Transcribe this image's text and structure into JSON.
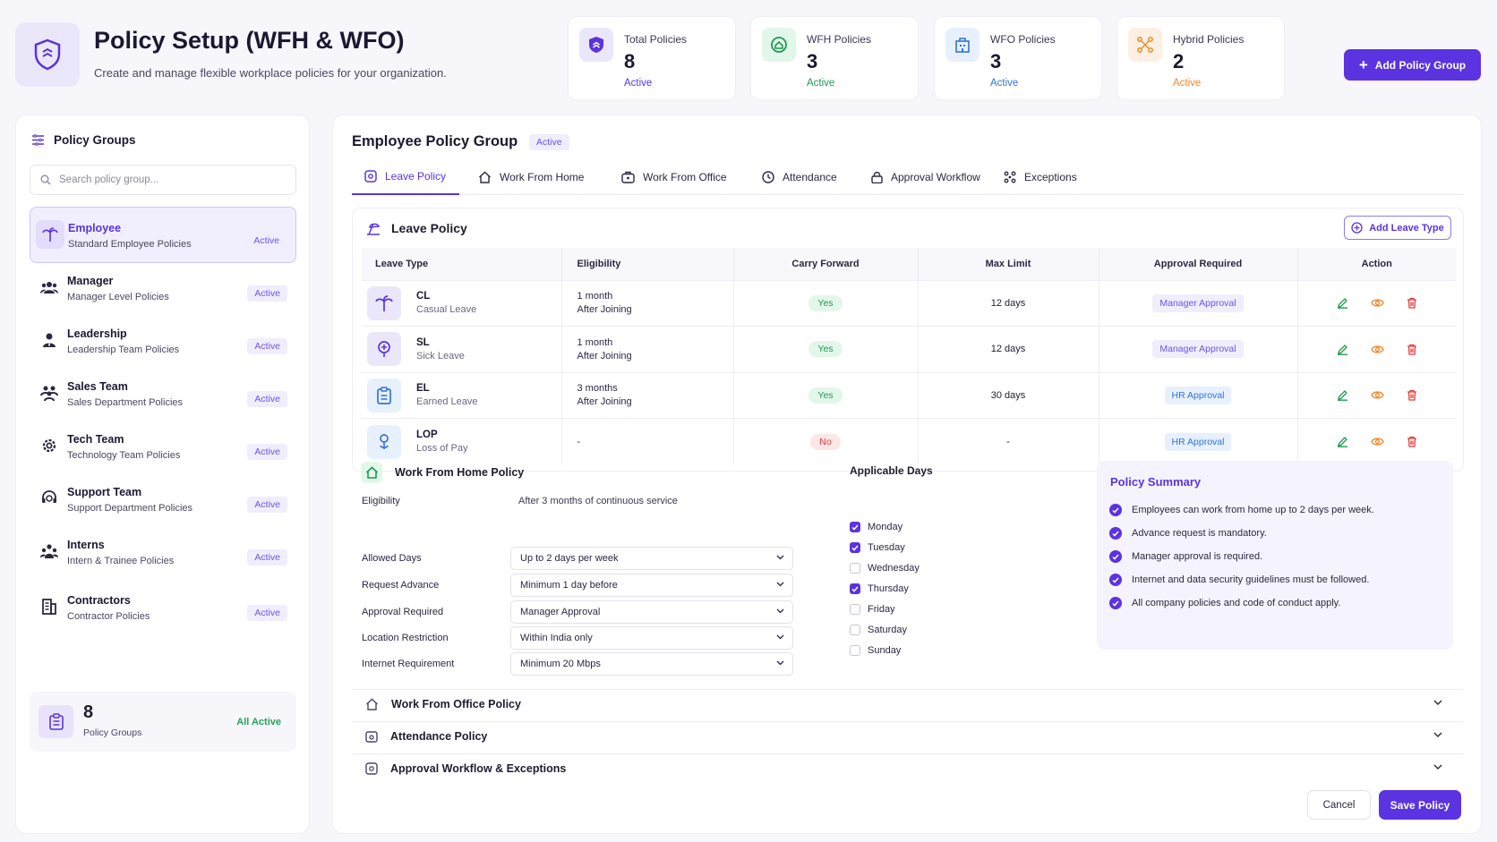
{
  "header": {
    "title": "Policy Setup (WFH & WFO)",
    "subtitle": "Create and manage flexible workplace policies for your organization.",
    "add_button": "Add Policy Group"
  },
  "stats": [
    {
      "label": "Total Policies",
      "value": "8",
      "status": "Active",
      "color": "#5b33e0",
      "icon": "shield-icon"
    },
    {
      "label": "WFH Policies",
      "value": "3",
      "status": "Active",
      "color": "#1e9a50",
      "icon": "home-icon"
    },
    {
      "label": "WFO Policies",
      "value": "3",
      "status": "Active",
      "color": "#3373d9",
      "icon": "building-icon"
    },
    {
      "label": "Hybrid Policies",
      "value": "2",
      "status": "Active",
      "color": "#ef8a2c",
      "icon": "hybrid-icon"
    }
  ],
  "sidebar": {
    "title": "Policy Groups",
    "search_placeholder": "Search policy group...",
    "items": [
      {
        "name": "Employee",
        "desc": "Standard Employee Policies",
        "status": "Active"
      },
      {
        "name": "Manager",
        "desc": "Manager Level Policies",
        "status": "Active"
      },
      {
        "name": "Leadership",
        "desc": "Leadership Team Policies",
        "status": "Active"
      },
      {
        "name": "Sales Team",
        "desc": "Sales Department Policies",
        "status": "Active"
      },
      {
        "name": "Tech Team",
        "desc": "Technology Team Policies",
        "status": "Active"
      },
      {
        "name": "Support Team",
        "desc": "Support Department Policies",
        "status": "Active"
      },
      {
        "name": "Interns",
        "desc": "Intern & Trainee Policies",
        "status": "Active"
      },
      {
        "name": "Contractors",
        "desc": "Contractor Policies",
        "status": "Active"
      }
    ],
    "summary": {
      "count": "8",
      "label": "Policy Groups",
      "status": "All Active"
    }
  },
  "main": {
    "title": "Employee Policy Group",
    "badge": "Active",
    "tabs": [
      {
        "label": "Leave Policy"
      },
      {
        "label": "Work From Home"
      },
      {
        "label": "Work From Office"
      },
      {
        "label": "Attendance"
      },
      {
        "label": "Approval Workflow"
      },
      {
        "label": "Exceptions"
      }
    ]
  },
  "leave": {
    "title": "Leave Policy",
    "add_button": "Add Leave Type",
    "columns": [
      "Leave Type",
      "Eligibility",
      "Carry Forward",
      "Max Limit",
      "Approval Required",
      "Action"
    ],
    "rows": [
      {
        "code": "CL",
        "name": "Casual Leave",
        "elig1": "1 month",
        "elig2": "After Joining",
        "carry": "Yes",
        "max": "12 days",
        "approval": "Manager Approval"
      },
      {
        "code": "SL",
        "name": "Sick Leave",
        "elig1": "1 month",
        "elig2": "After Joining",
        "carry": "Yes",
        "max": "12 days",
        "approval": "Manager Approval"
      },
      {
        "code": "EL",
        "name": "Earned Leave",
        "elig1": "3 months",
        "elig2": "After Joining",
        "carry": "Yes",
        "max": "30 days",
        "approval": "HR Approval"
      },
      {
        "code": "LOP",
        "name": "Loss of Pay",
        "elig1": "-",
        "elig2": "",
        "carry": "No",
        "max": "-",
        "approval": "HR Approval"
      }
    ]
  },
  "wfh": {
    "title": "Work From Home Policy",
    "eligibility_label": "Eligibility",
    "eligibility_value": "After 3 months of continuous service",
    "fields": [
      {
        "label": "Allowed Days",
        "value": "Up to 2 days per week"
      },
      {
        "label": "Request Advance",
        "value": "Minimum 1 day before"
      },
      {
        "label": "Approval Required",
        "value": "Manager Approval"
      },
      {
        "label": "Location Restriction",
        "value": "Within India only"
      },
      {
        "label": "Internet Requirement",
        "value": "Minimum 20 Mbps"
      }
    ]
  },
  "applicable_days": {
    "title": "Applicable Days",
    "days": [
      {
        "label": "Monday",
        "checked": true
      },
      {
        "label": "Tuesday",
        "checked": true
      },
      {
        "label": "Wednesday",
        "checked": false
      },
      {
        "label": "Thursday",
        "checked": true
      },
      {
        "label": "Friday",
        "checked": false
      },
      {
        "label": "Saturday",
        "checked": false
      },
      {
        "label": "Sunday",
        "checked": false
      }
    ]
  },
  "policy_summary": {
    "title": "Policy Summary",
    "items": [
      "Employees can work from home up to 2 days per week.",
      "Advance request is mandatory.",
      "Manager approval is required.",
      "Internet and data security guidelines must be followed.",
      "All company policies and code of conduct apply."
    ]
  },
  "accordions": [
    {
      "label": "Work From Office Policy"
    },
    {
      "label": "Attendance Policy"
    },
    {
      "label": "Approval Workflow & Exceptions"
    }
  ],
  "footer": {
    "cancel": "Cancel",
    "save": "Save Policy"
  }
}
